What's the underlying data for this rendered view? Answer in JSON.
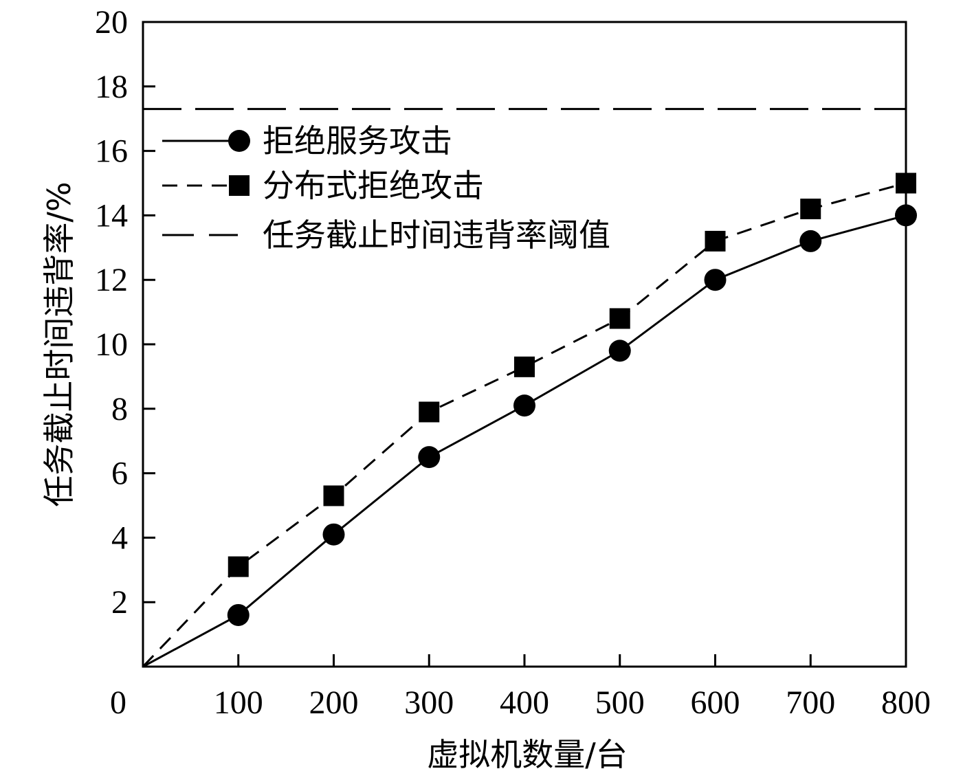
{
  "chart_data": {
    "type": "line",
    "xlabel": "虚拟机数量/台",
    "ylabel": "任务截止时间违背率/%",
    "xlim": [
      0,
      800
    ],
    "ylim": [
      0,
      20
    ],
    "x_ticks": [
      100,
      200,
      300,
      400,
      500,
      600,
      700,
      800
    ],
    "x_tick_labels": [
      "100",
      "200",
      "300",
      "400",
      "500",
      "600",
      "700",
      "800"
    ],
    "y_ticks": [
      2,
      4,
      6,
      8,
      10,
      12,
      14,
      16,
      18,
      20
    ],
    "y_tick_labels": [
      "2",
      "4",
      "6",
      "8",
      "10",
      "12",
      "14",
      "16",
      "18",
      "20"
    ],
    "origin_label": "0",
    "grid": false,
    "legend_position": "top-left",
    "series": [
      {
        "name": "拒绝服务攻击",
        "marker": "circle",
        "line_style": "solid",
        "color": "#000000",
        "x": [
          0,
          100,
          200,
          300,
          400,
          500,
          600,
          700,
          800
        ],
        "y": [
          0,
          1.6,
          4.1,
          6.5,
          8.1,
          9.8,
          12.0,
          13.2,
          14.0
        ]
      },
      {
        "name": "分布式拒绝攻击",
        "marker": "square",
        "line_style": "dashed",
        "color": "#000000",
        "x": [
          0,
          100,
          200,
          300,
          400,
          500,
          600,
          700,
          800
        ],
        "y": [
          0,
          3.1,
          5.3,
          7.9,
          9.3,
          10.8,
          13.2,
          14.2,
          15.0
        ]
      },
      {
        "name": "任务截止时间违背率阈值",
        "marker": "none",
        "line_style": "long-dashed",
        "color": "#000000",
        "x": [
          0,
          800
        ],
        "y": [
          17.3,
          17.3
        ]
      }
    ]
  }
}
